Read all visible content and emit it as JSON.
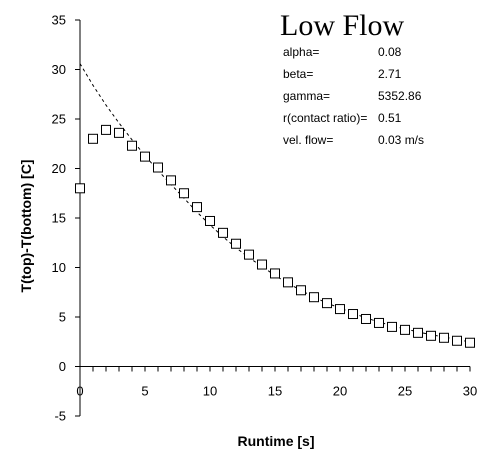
{
  "chart_data": {
    "type": "scatter",
    "title": "Low Flow",
    "xlabel": "Runtime [s]",
    "ylabel": "T(top)-T(bottom) [C]",
    "xlim": [
      0,
      30
    ],
    "ylim": [
      -5,
      35
    ],
    "x_ticks": [
      0,
      5,
      10,
      15,
      20,
      25,
      30
    ],
    "y_ticks": [
      -5,
      0,
      5,
      10,
      15,
      20,
      25,
      30,
      35
    ],
    "grid": false,
    "series": [
      {
        "marker": "open-square",
        "x": [
          0,
          1,
          2,
          3,
          4,
          5,
          6,
          7,
          8,
          9,
          10,
          11,
          12,
          13,
          14,
          15,
          16,
          17,
          18,
          19,
          20,
          21,
          22,
          23,
          24,
          25,
          26,
          27,
          28,
          29,
          30
        ],
        "y": [
          18.0,
          23.0,
          23.9,
          23.6,
          22.3,
          21.2,
          20.1,
          18.8,
          17.5,
          16.1,
          14.7,
          13.5,
          12.4,
          11.3,
          10.3,
          9.4,
          8.5,
          7.7,
          7.0,
          6.4,
          5.8,
          5.3,
          4.8,
          4.4,
          4.0,
          3.7,
          3.4,
          3.1,
          2.9,
          2.6,
          2.4
        ]
      },
      {
        "style": "dashed-line",
        "x": [
          0,
          1,
          2,
          3,
          4,
          5,
          6,
          7,
          8,
          9,
          10,
          11,
          12,
          13,
          14,
          15,
          16,
          17,
          18,
          19,
          20,
          21,
          22,
          23,
          24,
          25,
          26,
          27,
          28,
          29,
          30
        ],
        "y": [
          30.6,
          28.4,
          26.4,
          24.6,
          22.9,
          21.3,
          19.8,
          18.4,
          17.0,
          15.6,
          14.3,
          13.1,
          12.0,
          11.0,
          10.1,
          9.2,
          8.4,
          7.7,
          7.0,
          6.4,
          5.9,
          5.4,
          4.9,
          4.5,
          4.1,
          3.8,
          3.5,
          3.2,
          3.0,
          2.7,
          2.5
        ]
      }
    ],
    "annotations": [
      {
        "label": "alpha=",
        "value": "0.08"
      },
      {
        "label": "beta=",
        "value": "2.71"
      },
      {
        "label": "gamma=",
        "value": "5352.86"
      },
      {
        "label": "r(contact ratio)=",
        "value": "0.51"
      },
      {
        "label": "vel. flow=",
        "value": "0.03 m/s"
      }
    ]
  }
}
